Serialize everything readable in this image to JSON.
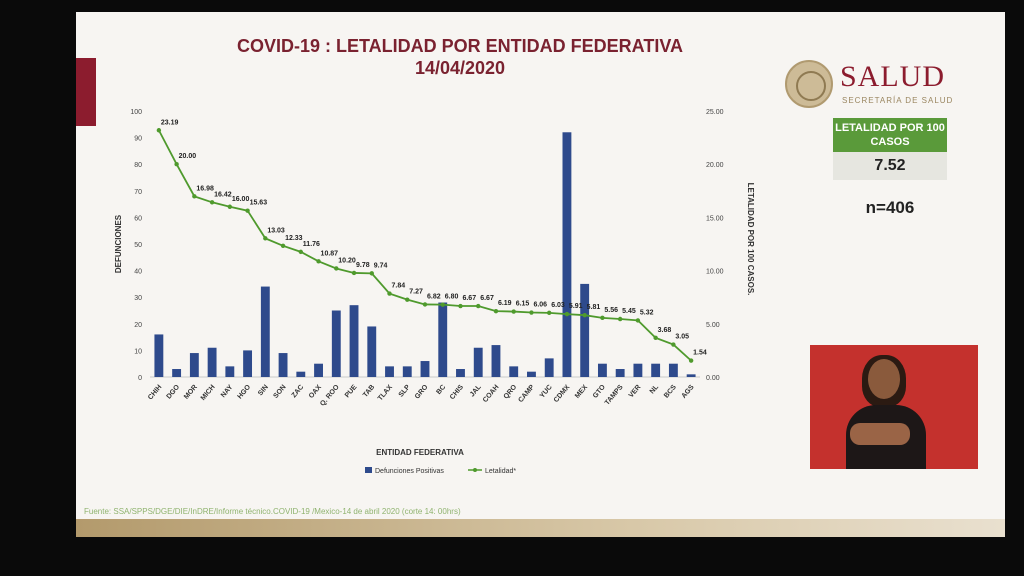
{
  "header": {
    "title": "COVID-19 : LETALIDAD POR ENTIDAD FEDERATIVA",
    "date": "14/04/2020"
  },
  "brand": {
    "name": "SALUD",
    "subtitle": "SECRETARÍA DE SALUD"
  },
  "summary": {
    "label": "LETALIDAD POR 100 CASOS",
    "value": "7.52",
    "n": "n=406"
  },
  "colors": {
    "title": "#7a2230",
    "bars": "#2e4a8c",
    "line": "#4f9a2d",
    "accent_red": "#8c1c2e",
    "accent_green": "#5a9a3a"
  },
  "source": "Fuente: SSA/SPPS/DGE/DIE/InDRE/Informe técnico.COVID-19 /Mexico-14 de abril 2020 (corte 14: 00hrs)",
  "chart_data": {
    "type": "bar",
    "xlabel": "ENTIDAD FEDERATIVA",
    "ylabel": "DEFUNCIONES",
    "y2label": "LETALIDAD POR 100 CASOS.",
    "ylim": [
      0,
      100
    ],
    "y2lim": [
      0,
      25
    ],
    "yticks": [
      "0",
      "10",
      "20",
      "30",
      "40",
      "50",
      "60",
      "70",
      "80",
      "90",
      "100"
    ],
    "y2ticks": [
      "0.00",
      "5.00",
      "10.00",
      "15.00",
      "20.00",
      "25.00"
    ],
    "legend_placement": "bottom",
    "categories": [
      "CHIH",
      "DGO",
      "MOR",
      "MICH",
      "NAY",
      "HGO",
      "SIN",
      "SON",
      "ZAC",
      "OAX",
      "Q. ROO",
      "PUE",
      "TAB",
      "TLAX",
      "SLP",
      "GRO",
      "BC",
      "CHIS",
      "JAL",
      "COAH",
      "QRO",
      "CAMP",
      "YUC",
      "CDMX",
      "MEX",
      "GTO",
      "TAMPS",
      "VER",
      "NL",
      "BCS",
      "AGS"
    ],
    "series": [
      {
        "name": "Defunciones Positivas",
        "type": "bar",
        "values": [
          16,
          3,
          9,
          11,
          4,
          10,
          34,
          9,
          2,
          5,
          25,
          27,
          19,
          4,
          4,
          6,
          28,
          3,
          11,
          12,
          4,
          2,
          7,
          92,
          35,
          5,
          3,
          5,
          5,
          5,
          1
        ]
      },
      {
        "name": "Letalidad*",
        "type": "line",
        "values": [
          23.19,
          20.0,
          16.98,
          16.42,
          16.0,
          15.63,
          13.03,
          12.33,
          11.76,
          10.87,
          10.2,
          9.78,
          9.74,
          7.84,
          7.27,
          6.82,
          6.8,
          6.67,
          6.67,
          6.19,
          6.15,
          6.06,
          6.03,
          5.91,
          5.81,
          5.56,
          5.45,
          5.32,
          3.68,
          3.05,
          1.54
        ],
        "labels": [
          "23.19",
          "20.00",
          "16.98",
          "16.42",
          "16.00",
          "15.63",
          "13.03",
          "12.33",
          "11.76",
          "10.87",
          "10.20",
          "9.78",
          "9.74",
          "7.84",
          "7.27",
          "6.82",
          "6.80",
          "6.67",
          "6.67",
          "6.19",
          "6.15",
          "6.06",
          "6.03",
          "5.91",
          "5.81",
          "5.56",
          "5.45",
          "5.32",
          "3.68",
          "3.05",
          "1.54"
        ]
      }
    ]
  }
}
